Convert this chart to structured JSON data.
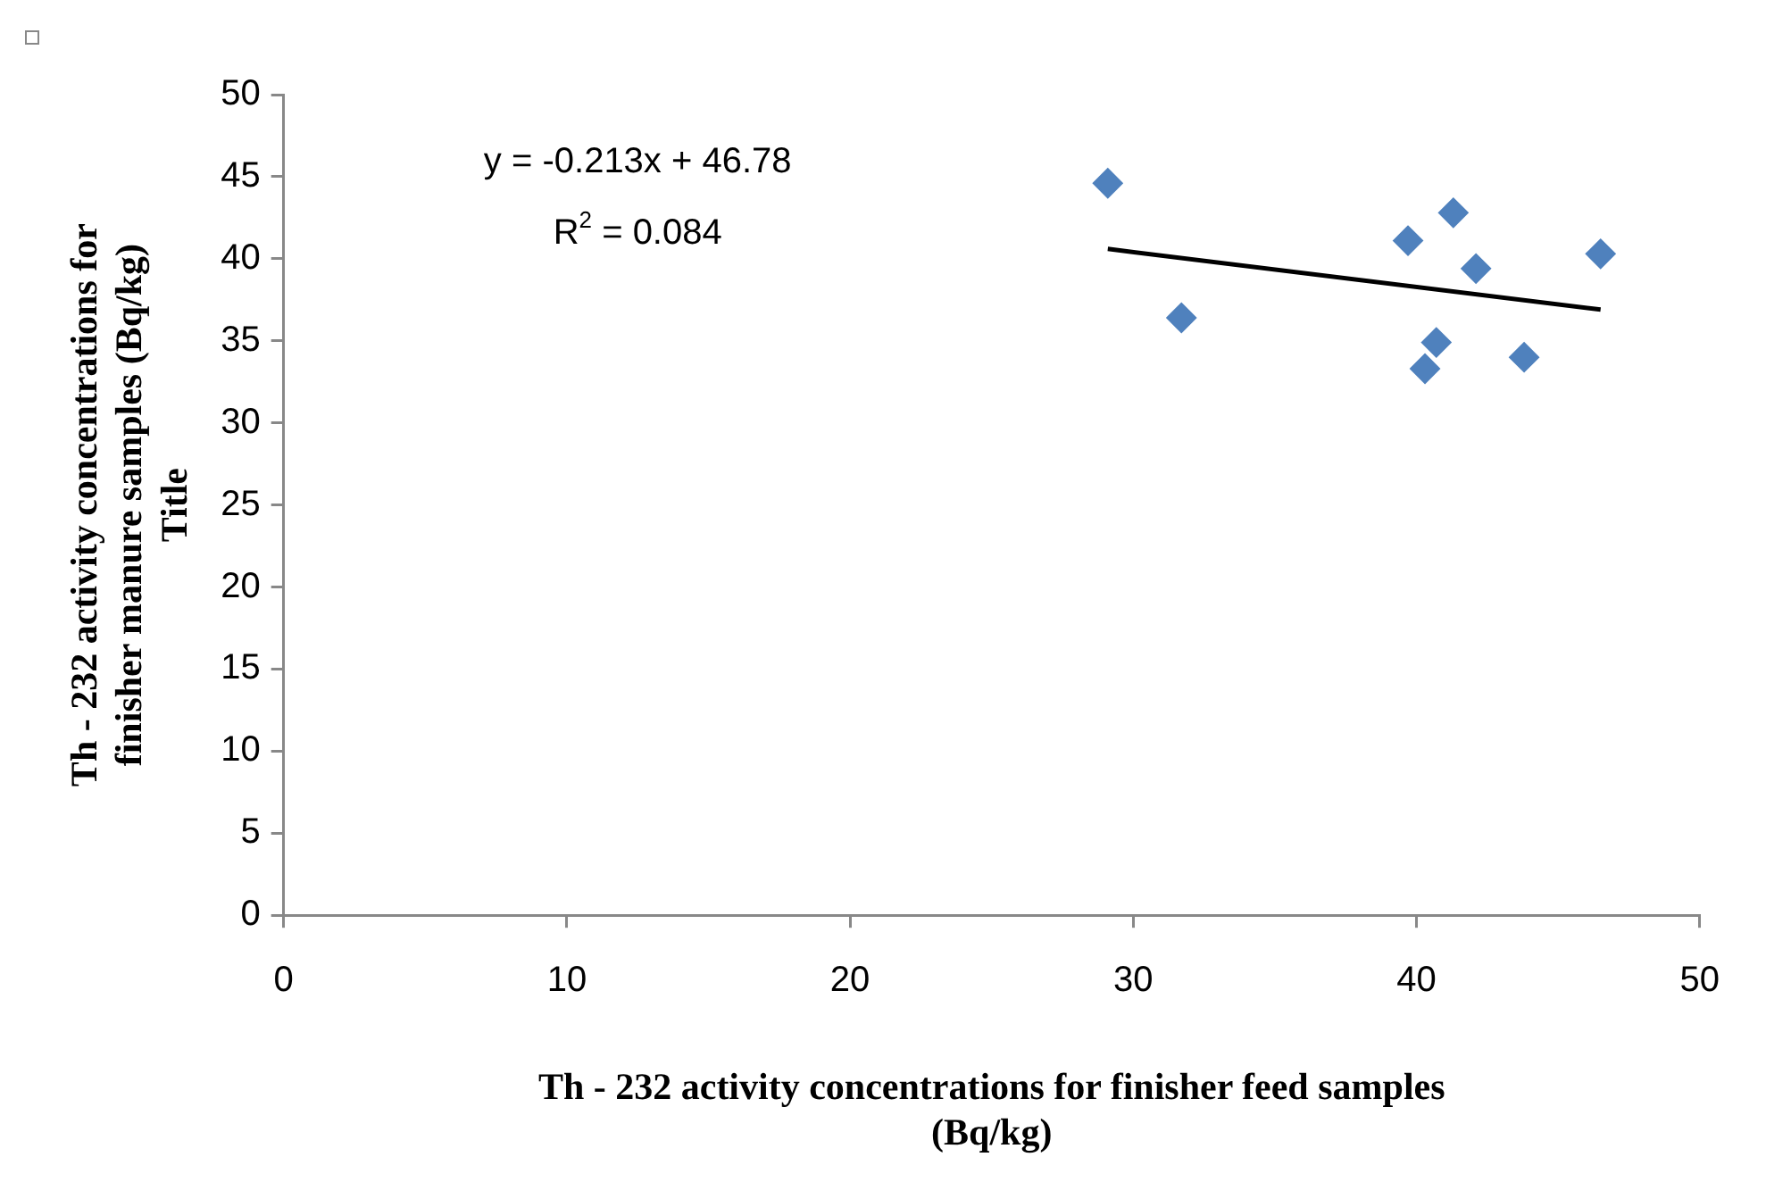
{
  "chart_data": {
    "type": "scatter",
    "xlabel": "Th - 232 activity concentrations for finisher feed samples (Bq/kg)",
    "ylabel": "Th - 232 activity concentrations for finisher manure samples (Bq/kg) Title",
    "series": [
      {
        "color": "#4f81bd",
        "marker": "diamond",
        "x": [
          29.1,
          31.7,
          39.7,
          41.3,
          42.1,
          46.5,
          40.7,
          40.3,
          43.8
        ],
        "values": [
          44.6,
          36.4,
          41.1,
          42.8,
          39.4,
          40.3,
          34.9,
          33.3,
          34.0
        ]
      },
      {
        "type": "line",
        "color": "#000000",
        "marker": "none",
        "line_style": "solid",
        "x": [
          29.1,
          46.5
        ],
        "values": [
          40.6,
          36.9
        ]
      }
    ],
    "xlim": [
      0,
      50
    ],
    "xticks": [
      0,
      10,
      20,
      30,
      40,
      50
    ],
    "ylim": [
      0,
      50
    ],
    "yticks": [
      0,
      5,
      10,
      15,
      20,
      25,
      30,
      35,
      40,
      45,
      50
    ],
    "grid": false,
    "legend": false,
    "annotations": [
      "y = -0.213x + 46.78",
      "R$^{2}$ = 0.084"
    ]
  }
}
